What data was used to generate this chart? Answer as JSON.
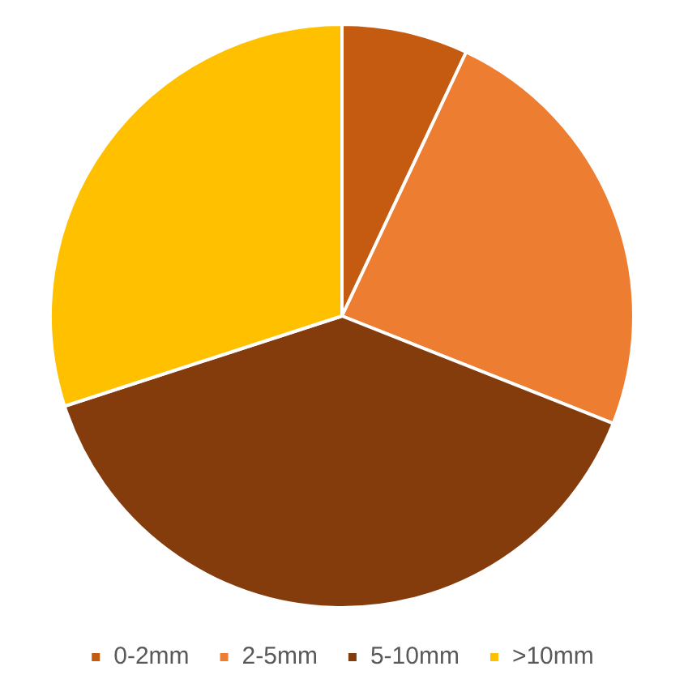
{
  "chart_data": {
    "type": "pie",
    "categories": [
      "0-2mm",
      "2-5mm",
      "5-10mm",
      ">10mm"
    ],
    "values": [
      7,
      24,
      39,
      30
    ],
    "colors": [
      "#c55a11",
      "#ed7d31",
      "#843c0c",
      "#ffc000"
    ],
    "legend": "bottom"
  }
}
